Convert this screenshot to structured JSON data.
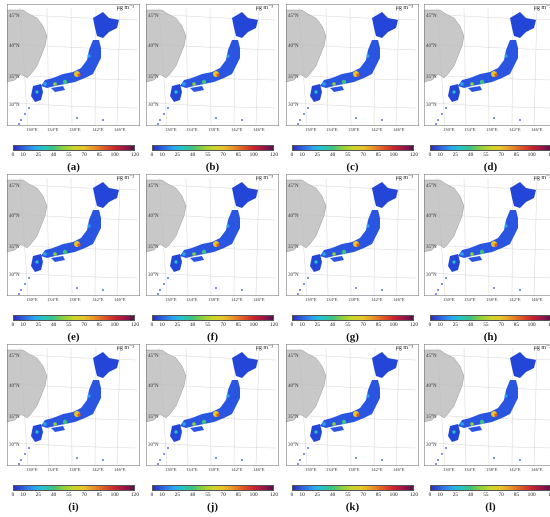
{
  "unit_label": "μg m⁻³",
  "lat_labels": [
    "45°N",
    "40°N",
    "35°N",
    "30°N"
  ],
  "lon_labels": [
    "130°E",
    "134°E",
    "138°E",
    "142°E",
    "146°E"
  ],
  "colorbar": {
    "ticks": [
      "0",
      "10",
      "25",
      "40",
      "55",
      "70",
      "85",
      "100",
      "120"
    ],
    "colors": [
      "#2b2bbf",
      "#2f6ae0",
      "#2aa4ef",
      "#22c4c9",
      "#3ec281",
      "#8ccf3c",
      "#c9d62a",
      "#e6c52a",
      "#e8972a",
      "#df5a23",
      "#c9242d",
      "#9c1646",
      "#5a0f4a"
    ]
  },
  "panels": [
    {
      "label": "(a)"
    },
    {
      "label": "(b)"
    },
    {
      "label": "(c)"
    },
    {
      "label": "(d)"
    },
    {
      "label": "(e)"
    },
    {
      "label": "(f)"
    },
    {
      "label": "(g)"
    },
    {
      "label": "(h)"
    },
    {
      "label": "(i)"
    },
    {
      "label": "(j)"
    },
    {
      "label": "(k)"
    },
    {
      "label": "(l)"
    }
  ]
}
